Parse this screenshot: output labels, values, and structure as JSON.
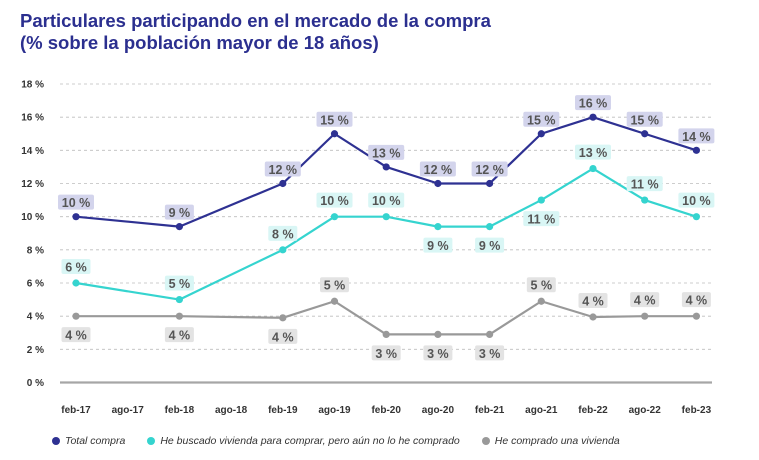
{
  "title_line1": "Particulares participando en el mercado de la compra",
  "title_line2": "(% sobre la población mayor de 18 años)",
  "chart_data": {
    "type": "line",
    "title": "Particulares participando en el mercado de la compra (% sobre la población mayor de 18 años)",
    "categories": [
      "feb-17",
      "ago-17",
      "feb-18",
      "ago-18",
      "feb-19",
      "ago-19",
      "feb-20",
      "ago-20",
      "feb-21",
      "ago-21",
      "feb-22",
      "ago-22",
      "feb-23"
    ],
    "x": [
      "feb-17",
      "feb-18",
      "feb-19",
      "ago-19",
      "feb-20",
      "ago-20",
      "feb-21",
      "ago-21",
      "feb-22",
      "ago-22",
      "feb-23"
    ],
    "yticks": [
      "0 %",
      "2 %",
      "4 %",
      "6 %",
      "8 %",
      "10 %",
      "12 %",
      "14 %",
      "16 %",
      "18 %"
    ],
    "ylim": [
      0,
      18
    ],
    "grid": "horizontal-dashed",
    "legend_position": "bottom",
    "series": [
      {
        "name": "Total compra",
        "color": "#2e3192",
        "label_bg": "#d3d4ec",
        "values": [
          10,
          9.4,
          12,
          15,
          13,
          12,
          12,
          15,
          16,
          15,
          14
        ],
        "labels": [
          "10 %",
          "9 %",
          "12 %",
          "15 %",
          "13 %",
          "12 %",
          "12 %",
          "15 %",
          "16 %",
          "15 %",
          "14 %"
        ]
      },
      {
        "name": "He buscado vivienda para comprar, pero aún no lo he comprado",
        "color": "#35d4cf",
        "label_bg": "#d9f6f5",
        "values": [
          6,
          5,
          8,
          10,
          10,
          9.4,
          9.4,
          11,
          12.9,
          11,
          10
        ],
        "labels": [
          "6 %",
          "5 %",
          "8 %",
          "10 %",
          "10 %",
          "9 %",
          "9 %",
          "11 %",
          "13 %",
          "11 %",
          "10 %"
        ]
      },
      {
        "name": "He comprado una vivienda",
        "color": "#999999",
        "label_bg": "#e3e3e3",
        "values": [
          4,
          4,
          3.9,
          4.9,
          2.9,
          2.9,
          2.9,
          4.9,
          3.95,
          4,
          4
        ],
        "labels": [
          "4 %",
          "4 %",
          "4 %",
          "5 %",
          "3 %",
          "3 %",
          "3 %",
          "5 %",
          "4 %",
          "4 %",
          "4 %"
        ]
      }
    ]
  }
}
